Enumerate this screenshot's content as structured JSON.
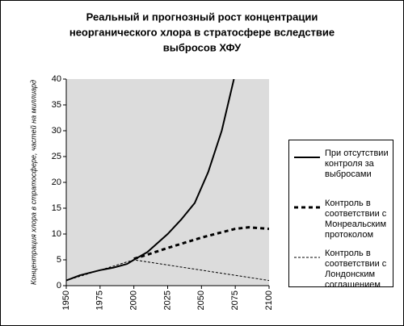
{
  "chart_data": {
    "type": "line",
    "title": [
      "Реальный и прогнозный рост концентрации",
      "неорганического хлора в стратосфере вследствие",
      "выбросов ХФУ"
    ],
    "y_label": "Концентрация хлора в стратосфере, частей на миллиард",
    "xlim": [
      1950,
      2100
    ],
    "xticks": [
      1950,
      1975,
      2000,
      2025,
      2050,
      2075,
      2100
    ],
    "ylim": [
      0,
      40
    ],
    "yticks": [
      0,
      5,
      10,
      15,
      20,
      25,
      30,
      35,
      40
    ],
    "background": "#dcdcdc",
    "series": [
      {
        "name": "При отсутствии контроля за выбросами",
        "color": "#000000",
        "dash": "solid",
        "x": [
          1950,
          1960,
          1975,
          1985,
          1995,
          2000,
          2010,
          2025,
          2035,
          2045,
          2055,
          2065,
          2074
        ],
        "values": [
          1,
          2,
          3,
          3.5,
          4.2,
          5,
          6.5,
          10,
          12.8,
          16,
          22,
          30,
          40
        ]
      },
      {
        "name": "Контроль в соответствии с Монреальским протоколом",
        "color": "#000000",
        "dash": "dashed",
        "x": [
          2000,
          2010,
          2025,
          2040,
          2050,
          2060,
          2075,
          2085,
          2100
        ],
        "values": [
          5.2,
          6,
          7.3,
          8.5,
          9.3,
          10,
          11,
          11.3,
          11
        ]
      },
      {
        "name": "Контроль в соответствии с Лондонским соглашением",
        "color": "#000000",
        "dash": "dotted",
        "x": [
          1950,
          1975,
          2000,
          2025,
          2050,
          2075,
          2100
        ],
        "values": [
          1,
          3,
          5,
          4,
          3,
          2,
          1
        ]
      }
    ]
  }
}
